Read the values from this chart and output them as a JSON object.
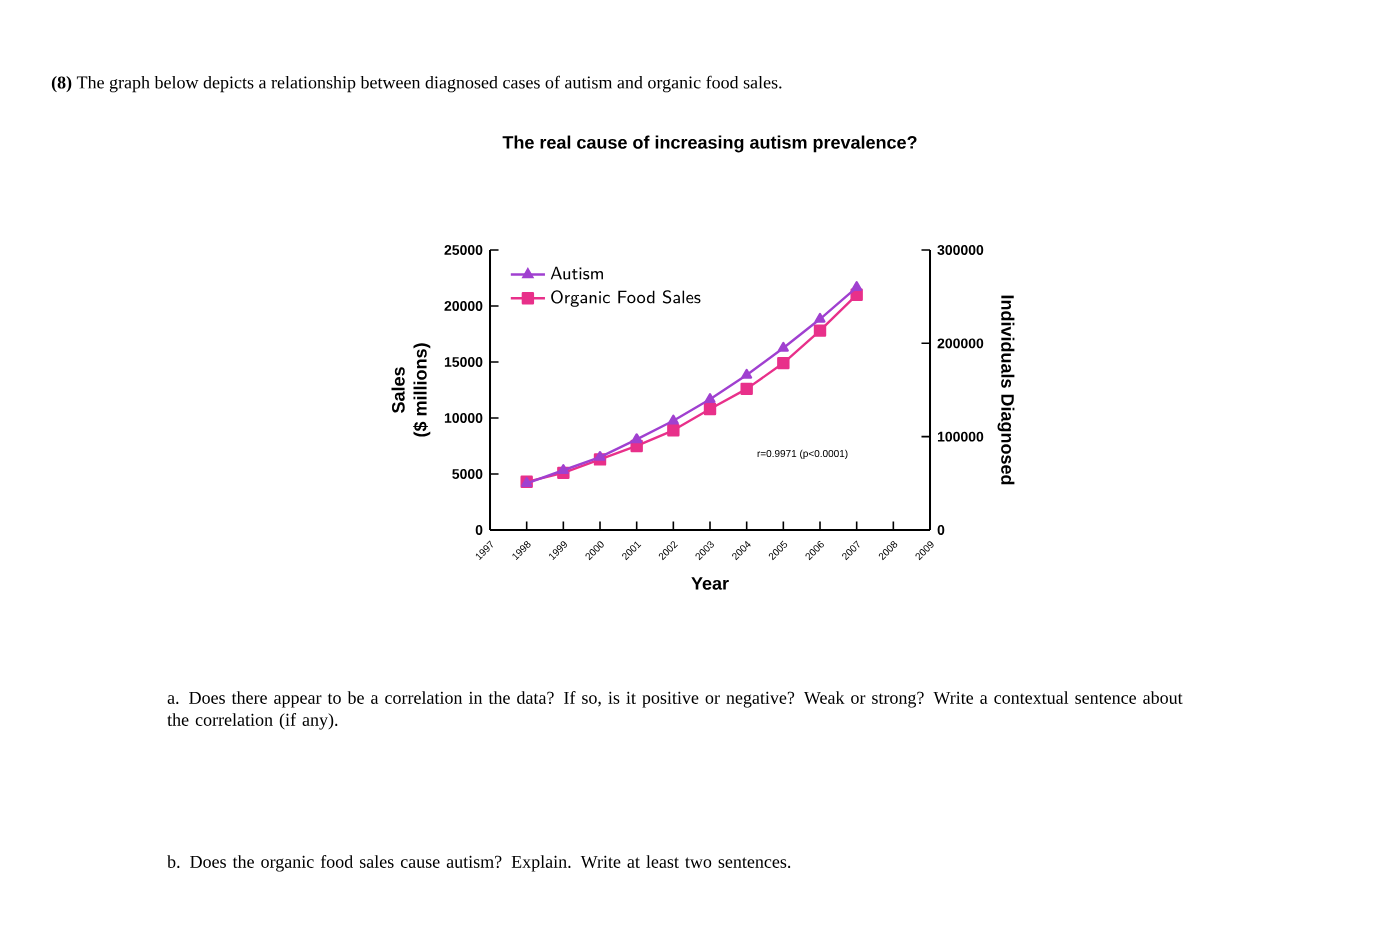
{
  "chart_data": {
    "type": "line",
    "title": "The real cause of increasing autism prevalence?",
    "xlabel": "Year",
    "ylabel": "Sales\n($ millions)",
    "y2label": "Individuals Diagnosed",
    "x": [
      1998,
      1999,
      2000,
      2001,
      2002,
      2003,
      2004,
      2005,
      2006,
      2007
    ],
    "series": [
      {
        "name": "Autism",
        "color": "#a040d0",
        "axis": "y2",
        "marker": "triangle",
        "values": [
          50000,
          64000,
          78000,
          97000,
          117000,
          140000,
          166000,
          195000,
          226000,
          260000
        ]
      },
      {
        "name": "Organic Food Sales",
        "color": "#e8308a",
        "marker": "square",
        "values": [
          4300,
          5100,
          6300,
          7500,
          8900,
          10800,
          12600,
          14900,
          17800,
          21000
        ]
      }
    ],
    "xlim": [
      1997,
      2009
    ],
    "xticks": [
      1997,
      1998,
      1999,
      2000,
      2001,
      2002,
      2003,
      2004,
      2005,
      2006,
      2007,
      2008,
      2009
    ],
    "ylim": [
      0,
      25000
    ],
    "yticks": [
      0,
      5000,
      10000,
      15000,
      20000,
      25000
    ],
    "y2lim": [
      0,
      300000
    ],
    "y2ticks": [
      0,
      100000,
      200000,
      300000
    ],
    "grid": false,
    "legend": "top left",
    "line_style": "solid",
    "annotations": [
      "**(8)** The graph below depicts a relationship between diagnosed cases of autism and organic food sales.",
      "r=0.9971 (p<0.0001)",
      "a. Does there appear to be a correlation in the data? If so, is it positive or negative? Weak or strong? Write a contextual sentence about the correlation (if any).",
      "b. Does the organic food sales cause autism? Explain. Write at least two sentences."
    ]
  }
}
